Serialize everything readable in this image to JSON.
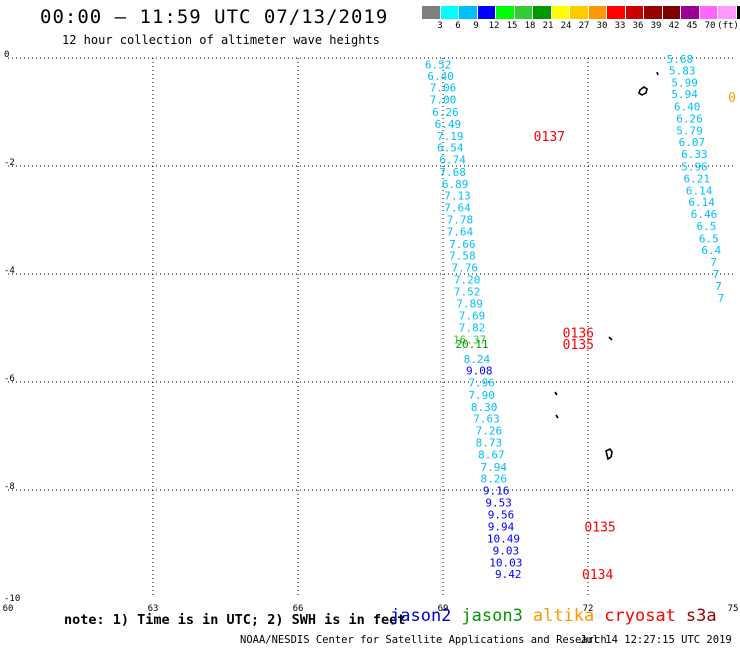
{
  "header": {
    "title": "00:00 – 11:59 UTC 07/13/2019",
    "subtitle": "12 hour collection of altimeter wave heights"
  },
  "colorbar": {
    "colors": [
      "#808080",
      "#00ffff",
      "#00bfff",
      "#0000ff",
      "#00ff00",
      "#33cc33",
      "#009900",
      "#ffff00",
      "#ffcc00",
      "#ff9900",
      "#ff0000",
      "#cc0000",
      "#990000",
      "#800000",
      "#990099",
      "#ff66ff",
      "#ff99ff",
      "#000000"
    ],
    "labels": [
      "3",
      "6",
      "9",
      "12",
      "15",
      "18",
      "21",
      "24",
      "27",
      "30",
      "33",
      "36",
      "39",
      "42",
      "45",
      "70"
    ],
    "unit": "(ft)"
  },
  "chart_data": {
    "type": "scatter",
    "xlim": [
      60,
      75
    ],
    "ylim": [
      -10,
      0
    ],
    "x_ticks": [
      "60",
      "63",
      "66",
      "69",
      "72",
      "75"
    ],
    "y_ticks": [
      "0",
      "-2",
      "-4",
      "-6",
      "-8",
      "-10"
    ],
    "grid": true,
    "series": [
      {
        "name": "jason2",
        "color": "#0000cc"
      },
      {
        "name": "jason3",
        "color": "#009900"
      },
      {
        "name": "altika",
        "color": "#ff9900"
      },
      {
        "name": "cryosat",
        "color": "#ff0000"
      },
      {
        "name": "s3a",
        "color": "#990000"
      }
    ],
    "tracks": [
      {
        "series": "s3a",
        "points": [
          {
            "x": 68.9,
            "y": -0.12,
            "v": "6.52",
            "c": "#00bfff"
          },
          {
            "x": 68.95,
            "y": -0.33,
            "v": "6.40",
            "c": "#00bfff"
          },
          {
            "x": 69.0,
            "y": -0.55,
            "v": "7.06",
            "c": "#00bfff"
          },
          {
            "x": 69.0,
            "y": -0.77,
            "v": "7.00",
            "c": "#00bfff"
          },
          {
            "x": 69.05,
            "y": -1.0,
            "v": "6.26",
            "c": "#00bfff"
          },
          {
            "x": 69.1,
            "y": -1.22,
            "v": "6.49",
            "c": "#00bfff"
          },
          {
            "x": 69.15,
            "y": -1.44,
            "v": "7.19",
            "c": "#00bfff"
          },
          {
            "x": 69.15,
            "y": -1.66,
            "v": "6.54",
            "c": "#00bfff"
          },
          {
            "x": 69.2,
            "y": -1.88,
            "v": "6.74",
            "c": "#00bfff"
          },
          {
            "x": 69.2,
            "y": -2.11,
            "v": "7.68",
            "c": "#00bfff"
          },
          {
            "x": 69.25,
            "y": -2.33,
            "v": "6.89",
            "c": "#00bfff"
          },
          {
            "x": 69.3,
            "y": -2.55,
            "v": "7.13",
            "c": "#00bfff"
          },
          {
            "x": 69.3,
            "y": -2.77,
            "v": "7.64",
            "c": "#00bfff"
          },
          {
            "x": 69.35,
            "y": -2.99,
            "v": "7.78",
            "c": "#00bfff"
          },
          {
            "x": 69.35,
            "y": -3.21,
            "v": "7.64",
            "c": "#00bfff"
          },
          {
            "x": 69.4,
            "y": -3.44,
            "v": "7.66",
            "c": "#00bfff"
          },
          {
            "x": 69.4,
            "y": -3.66,
            "v": "7.58",
            "c": "#00bfff"
          },
          {
            "x": 69.45,
            "y": -3.88,
            "v": "7.76",
            "c": "#00bfff"
          },
          {
            "x": 69.5,
            "y": -4.1,
            "v": "7.20",
            "c": "#00bfff"
          },
          {
            "x": 69.5,
            "y": -4.32,
            "v": "7.52",
            "c": "#00bfff"
          },
          {
            "x": 69.55,
            "y": -4.55,
            "v": "7.89",
            "c": "#00bfff"
          },
          {
            "x": 69.6,
            "y": -4.77,
            "v": "7.69",
            "c": "#00bfff"
          },
          {
            "x": 69.6,
            "y": -4.99,
            "v": "7.82",
            "c": "#00bfff"
          }
        ]
      },
      {
        "series": "jason3",
        "points": [
          {
            "x": 69.55,
            "y": -5.21,
            "v": "16.37",
            "c": "#33cc33"
          },
          {
            "x": 69.6,
            "y": -5.3,
            "v": "20.11",
            "c": "#009900"
          }
        ]
      },
      {
        "series": "s3a",
        "points": [
          {
            "x": 69.7,
            "y": -5.57,
            "v": "8.24",
            "c": "#00bfff"
          },
          {
            "x": 69.75,
            "y": -5.79,
            "v": "9.08",
            "c": "#0000ff"
          },
          {
            "x": 69.8,
            "y": -6.01,
            "v": "7.96",
            "c": "#00bfff"
          },
          {
            "x": 69.8,
            "y": -6.24,
            "v": "7.90",
            "c": "#00bfff"
          },
          {
            "x": 69.85,
            "y": -6.46,
            "v": "8.30",
            "c": "#00bfff"
          },
          {
            "x": 69.9,
            "y": -6.68,
            "v": "7.63",
            "c": "#00bfff"
          },
          {
            "x": 69.95,
            "y": -6.9,
            "v": "7.26",
            "c": "#00bfff"
          },
          {
            "x": 69.95,
            "y": -7.12,
            "v": "8.73",
            "c": "#00bfff"
          },
          {
            "x": 70.0,
            "y": -7.34,
            "v": "8.67",
            "c": "#00bfff"
          },
          {
            "x": 70.05,
            "y": -7.57,
            "v": "7.94",
            "c": "#00bfff"
          },
          {
            "x": 70.05,
            "y": -7.79,
            "v": "8.26",
            "c": "#00bfff"
          },
          {
            "x": 70.1,
            "y": -8.01,
            "v": "9.16",
            "c": "#0000ff"
          },
          {
            "x": 70.15,
            "y": -8.23,
            "v": "9.53",
            "c": "#0000ff"
          },
          {
            "x": 70.2,
            "y": -8.45,
            "v": "9.56",
            "c": "#0000ff"
          },
          {
            "x": 70.2,
            "y": -8.68,
            "v": "9.94",
            "c": "#0000ff"
          },
          {
            "x": 70.25,
            "y": -8.9,
            "v": "10.49",
            "c": "#0000ff"
          },
          {
            "x": 70.3,
            "y": -9.12,
            "v": "9.03",
            "c": "#0000ff"
          },
          {
            "x": 70.3,
            "y": -9.34,
            "v": "10.03",
            "c": "#0000ff"
          },
          {
            "x": 70.35,
            "y": -9.56,
            "v": "9.42",
            "c": "#0000ff"
          }
        ]
      },
      {
        "series": "s3a",
        "points": [
          {
            "x": 73.9,
            "y": -0.02,
            "v": "5.68",
            "c": "#00bfff"
          },
          {
            "x": 73.95,
            "y": -0.23,
            "v": "5.83",
            "c": "#00bfff"
          },
          {
            "x": 74.0,
            "y": -0.45,
            "v": "5.99",
            "c": "#00bfff"
          },
          {
            "x": 74.0,
            "y": -0.67,
            "v": "5.94",
            "c": "#00bfff"
          },
          {
            "x": 74.05,
            "y": -0.9,
            "v": "6.40",
            "c": "#00bfff"
          },
          {
            "x": 74.1,
            "y": -1.12,
            "v": "6.26",
            "c": "#00bfff"
          },
          {
            "x": 74.1,
            "y": -1.34,
            "v": "5.79",
            "c": "#00bfff"
          },
          {
            "x": 74.15,
            "y": -1.56,
            "v": "6.07",
            "c": "#00bfff"
          },
          {
            "x": 74.2,
            "y": -1.78,
            "v": "6.33",
            "c": "#00bfff"
          },
          {
            "x": 74.2,
            "y": -2.01,
            "v": "5.96",
            "c": "#00bfff"
          },
          {
            "x": 74.25,
            "y": -2.23,
            "v": "6.21",
            "c": "#00bfff"
          },
          {
            "x": 74.3,
            "y": -2.45,
            "v": "6.14",
            "c": "#00bfff"
          },
          {
            "x": 74.35,
            "y": -2.67,
            "v": "6.14",
            "c": "#00bfff"
          },
          {
            "x": 74.4,
            "y": -2.89,
            "v": "6.46",
            "c": "#00bfff"
          },
          {
            "x": 74.45,
            "y": -3.11,
            "v": "6.5",
            "c": "#00bfff"
          },
          {
            "x": 74.5,
            "y": -3.34,
            "v": "6.5",
            "c": "#00bfff"
          },
          {
            "x": 74.55,
            "y": -3.56,
            "v": "6.4",
            "c": "#00bfff"
          },
          {
            "x": 74.6,
            "y": -3.78,
            "v": "7",
            "c": "#00bfff"
          },
          {
            "x": 74.65,
            "y": -4.0,
            "v": "7",
            "c": "#00bfff"
          },
          {
            "x": 74.7,
            "y": -4.22,
            "v": "7",
            "c": "#00bfff"
          },
          {
            "x": 74.75,
            "y": -4.44,
            "v": "7",
            "c": "#00bfff"
          }
        ]
      }
    ],
    "time_labels": [
      {
        "x": 71.2,
        "y": -1.44,
        "text": "0137",
        "color": "#ff0000"
      },
      {
        "x": 71.8,
        "y": -5.08,
        "text": "0136",
        "color": "#ff0000"
      },
      {
        "x": 71.8,
        "y": -5.3,
        "text": "0135",
        "color": "#ff0000"
      },
      {
        "x": 72.25,
        "y": -8.68,
        "text": "0135",
        "color": "#ff0000"
      },
      {
        "x": 72.2,
        "y": -9.56,
        "text": "0134",
        "color": "#ff0000"
      }
    ],
    "partial_labels": [
      {
        "x": 74.9,
        "y": -0.72,
        "text": "0",
        "color": "#ff9900"
      }
    ]
  },
  "footer": {
    "note": "note: 1) Time is in UTC; 2) SWH is in feet",
    "satellites": [
      {
        "label": "jason2",
        "color": "#0000cc"
      },
      {
        "label": "jason3",
        "color": "#009900"
      },
      {
        "label": "altika",
        "color": "#ff9900"
      },
      {
        "label": "cryosat",
        "color": "#ff0000"
      },
      {
        "label": "s3a",
        "color": "#990000"
      }
    ],
    "credit": "NOAA/NESDIS Center for Satellite Applications and Research",
    "timestamp": "Jul 14 12:27:15 UTC 2019"
  }
}
